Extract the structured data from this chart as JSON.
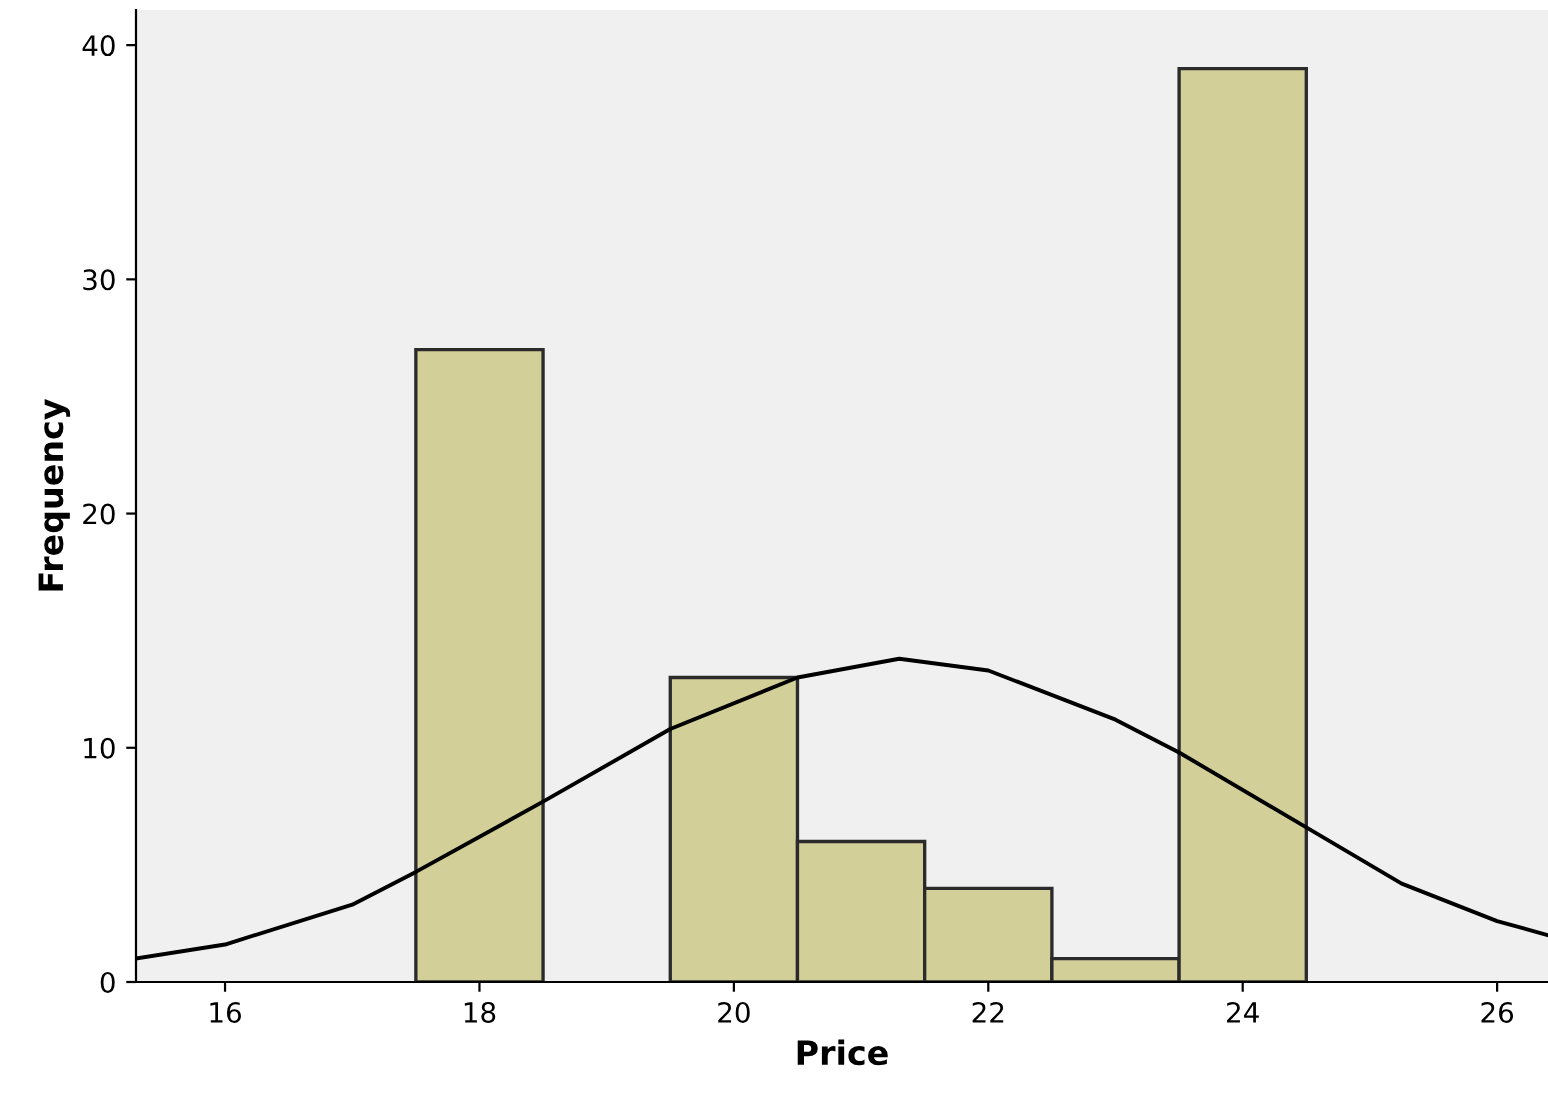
{
  "chart_data": {
    "type": "histogram",
    "xlabel": "Price",
    "ylabel": "Frequency",
    "bins": [
      17.5,
      18.5,
      19.5,
      20.5,
      21.5,
      22.5,
      23.5,
      24.5
    ],
    "values": [
      27,
      0,
      13,
      6,
      4,
      1,
      39
    ],
    "color": "#d3cf98",
    "series": [
      {
        "type": "line",
        "color": "#000000",
        "x": [
          15.3,
          16,
          17,
          17.5,
          18.5,
          19.5,
          20.5,
          21.3,
          22,
          23,
          23.5,
          24.5,
          25.25,
          26,
          26.4
        ],
        "values": [
          1.0,
          1.6,
          3.3,
          4.7,
          7.7,
          10.8,
          13.0,
          13.8,
          13.3,
          11.2,
          9.8,
          6.6,
          4.2,
          2.6,
          2.0
        ]
      }
    ],
    "xlim": [
      15.3,
      26.4
    ],
    "xticks": [
      16,
      18,
      20,
      22,
      24,
      26
    ],
    "ylim": [
      0,
      41.5
    ],
    "yticks": [
      0,
      10,
      20,
      30,
      40
    ],
    "grid": false
  }
}
